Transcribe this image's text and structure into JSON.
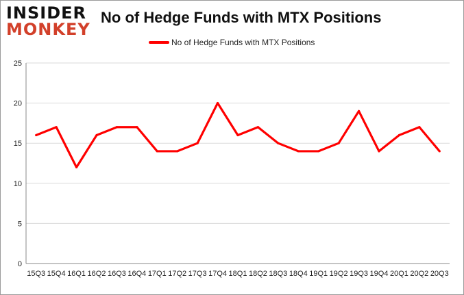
{
  "logo": {
    "line1": "INSIDER",
    "line2": "MONKEY"
  },
  "chart_data": {
    "type": "line",
    "title": "No of Hedge Funds with MTX Positions",
    "xlabel": "",
    "ylabel": "",
    "categories": [
      "15Q3",
      "15Q4",
      "16Q1",
      "16Q2",
      "16Q3",
      "16Q4",
      "17Q1",
      "17Q2",
      "17Q3",
      "17Q4",
      "18Q1",
      "18Q2",
      "18Q3",
      "18Q4",
      "19Q1",
      "19Q2",
      "19Q3",
      "19Q4",
      "20Q1",
      "20Q2",
      "20Q3"
    ],
    "series": [
      {
        "name": "No of Hedge Funds with MTX Positions",
        "color": "#ff0000",
        "values": [
          16,
          17,
          12,
          16,
          17,
          17,
          14,
          14,
          15,
          20,
          16,
          17,
          15,
          14,
          14,
          15,
          19,
          14,
          16,
          17,
          14
        ]
      }
    ],
    "ylim": [
      0,
      25
    ],
    "yticks": [
      0,
      5,
      10,
      15,
      20,
      25
    ],
    "grid": true,
    "legend": "top-center"
  }
}
